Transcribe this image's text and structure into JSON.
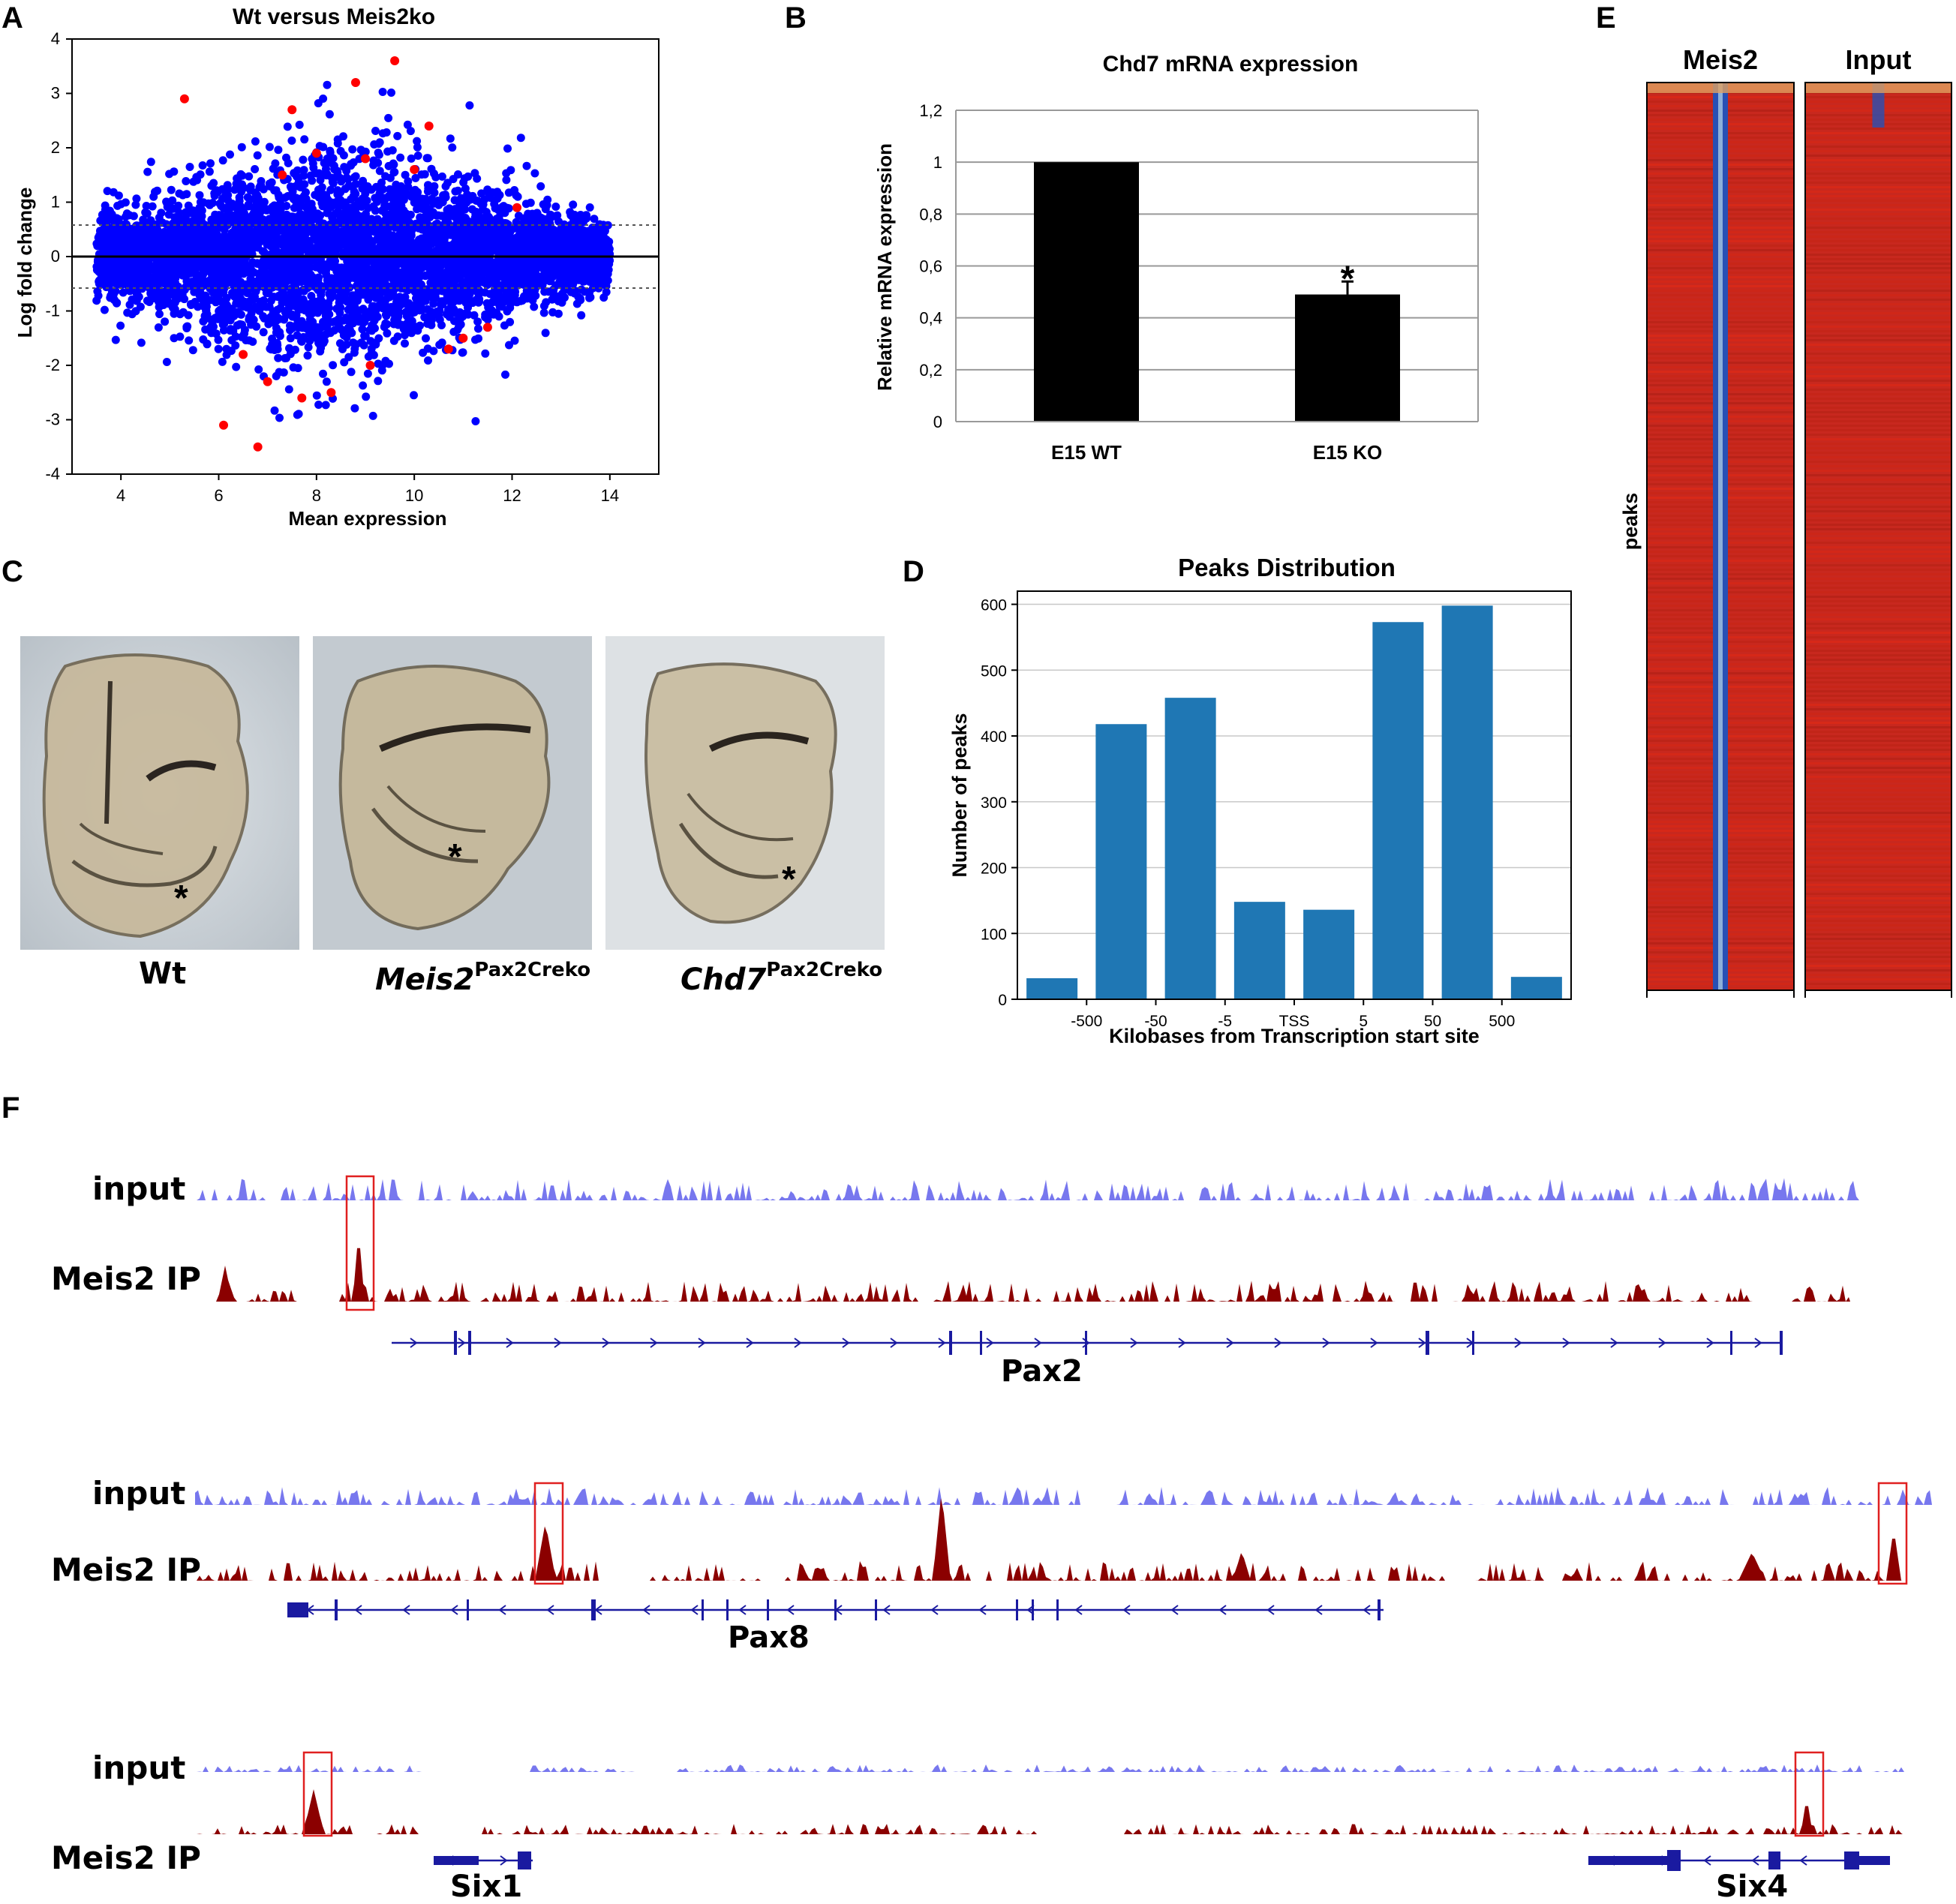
{
  "panels": {
    "a": "A",
    "b": "B",
    "c": "C",
    "d": "D",
    "e": "E",
    "f": "F"
  },
  "colors": {
    "ma_background": "#0000ff",
    "ma_significant": "#ff0000",
    "bar_b": "#000000",
    "bar_d": "#1f77b4",
    "heatmap_red": "#c8281e",
    "heatmap_blue": "#2850b4",
    "input_track": "#7777ee",
    "ip_track": "#8b0000",
    "gene": "#1a1aa0",
    "highlight_box": "#e02020"
  },
  "chart_data": [
    {
      "id": "A",
      "type": "scatter",
      "title": "Wt versus Meis2ko",
      "xlabel": "Mean expression",
      "ylabel": "Log fold change",
      "xlim": [
        3,
        15
      ],
      "ylim": [
        -4,
        4
      ],
      "x_ticks": [
        "4",
        "6",
        "8",
        "10",
        "12",
        "14"
      ],
      "y_ticks": [
        "4",
        "3",
        "2",
        "1",
        "0",
        "-1",
        "-2",
        "-3",
        "-4"
      ],
      "threshold_lines": [
        0.58,
        -0.58
      ],
      "series": [
        {
          "name": "not significant",
          "color": "blue",
          "approx_points": 20000
        },
        {
          "name": "significant",
          "color": "red",
          "points": [
            [
              5.3,
              2.9
            ],
            [
              9.6,
              3.6
            ],
            [
              8.8,
              3.2
            ],
            [
              7.5,
              2.7
            ],
            [
              10.3,
              2.4
            ],
            [
              6.8,
              -3.5
            ],
            [
              6.1,
              -3.1
            ],
            [
              7.7,
              -2.6
            ],
            [
              8.3,
              -2.5
            ],
            [
              11.0,
              -1.5
            ],
            [
              9.1,
              -2.0
            ],
            [
              6.5,
              -1.8
            ],
            [
              10.7,
              -1.7
            ],
            [
              8.0,
              1.9
            ],
            [
              9.0,
              1.8
            ],
            [
              10.0,
              1.6
            ],
            [
              7.0,
              -2.3
            ],
            [
              11.5,
              -1.3
            ],
            [
              12.1,
              0.9
            ],
            [
              7.3,
              1.5
            ]
          ]
        }
      ]
    },
    {
      "id": "B",
      "type": "bar",
      "title": "Chd7 mRNA expression",
      "ylabel": "Relative mRNA expression",
      "categories": [
        "E15 WT",
        "E15 KO"
      ],
      "values": [
        1.0,
        0.49
      ],
      "error": [
        0,
        0.05
      ],
      "significance": [
        "",
        "*"
      ],
      "ylim": [
        0,
        1.2
      ],
      "y_ticks": [
        "0",
        "0,2",
        "0,4",
        "0,6",
        "0,8",
        "1",
        "1,2"
      ]
    },
    {
      "id": "D",
      "type": "bar",
      "title": "Peaks Distribution",
      "xlabel": "Kilobases from Transcription start site",
      "ylabel": "Number of peaks",
      "values": [
        32,
        418,
        458,
        148,
        136,
        573,
        598,
        34
      ],
      "boundary_labels": [
        "-500",
        "-50",
        "-5",
        "TSS",
        "5",
        "50",
        "500"
      ],
      "ylim": [
        0,
        620
      ],
      "y_ticks": [
        "0",
        "100",
        "200",
        "300",
        "400",
        "500",
        "600"
      ]
    },
    {
      "id": "E",
      "type": "heatmap",
      "columns": [
        "Meis2",
        "Input"
      ],
      "ylabel": "peaks"
    }
  ],
  "panel_c": {
    "images": [
      {
        "label_main": "Wt",
        "label_sup": "",
        "italic": false,
        "marker": "*"
      },
      {
        "label_main": "Meis2",
        "label_sup": "Pax2Creko",
        "italic": true,
        "marker": "*"
      },
      {
        "label_main": "Chd7",
        "label_sup": "Pax2Creko",
        "italic": true,
        "marker": "*"
      }
    ]
  },
  "panel_f": {
    "track_labels": {
      "input": "input",
      "ip": "Meis2 IP"
    },
    "genes": [
      "Pax2",
      "Pax8",
      "Six1",
      "Six4"
    ]
  }
}
